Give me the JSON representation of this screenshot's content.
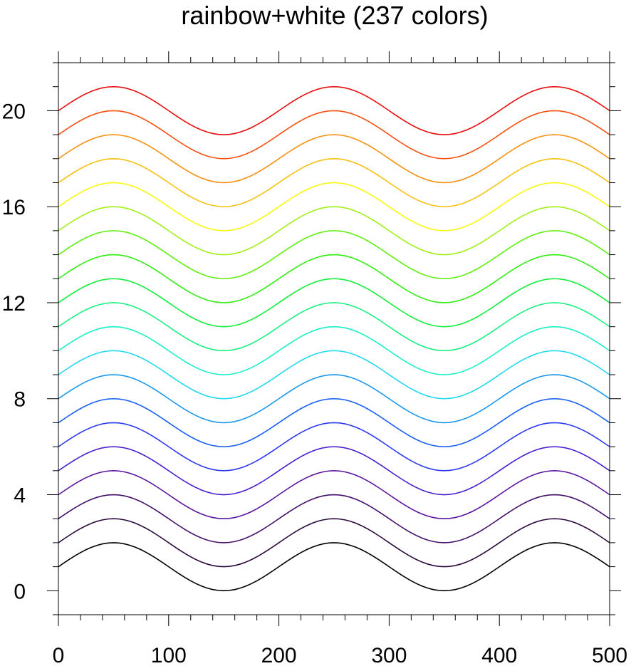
{
  "chart_data": {
    "type": "line",
    "title": "rainbow+white (237 colors)",
    "xlabel": "",
    "ylabel": "",
    "xlim": [
      0,
      500
    ],
    "ylim": [
      -1,
      22
    ],
    "x_ticks": [
      0,
      100,
      200,
      300,
      400,
      500
    ],
    "y_ticks": [
      0,
      4,
      8,
      12,
      16,
      20
    ],
    "x_minor_step": 20,
    "y_minor_step": 1,
    "grid": false,
    "legend": "none",
    "curve": {
      "function": "sine",
      "amplitude": 1,
      "period": 200,
      "peak_x": 50,
      "x_start": 0,
      "x_end": 500,
      "x_step": 5
    },
    "series": [
      {
        "offset": 1,
        "color": "#000000"
      },
      {
        "offset": 2,
        "color": "#2a0a3c"
      },
      {
        "offset": 3,
        "color": "#44126a"
      },
      {
        "offset": 4,
        "color": "#5a14a0"
      },
      {
        "offset": 5,
        "color": "#4a1ed0"
      },
      {
        "offset": 6,
        "color": "#2a38f0"
      },
      {
        "offset": 7,
        "color": "#1a60f4"
      },
      {
        "offset": 8,
        "color": "#1a98f0"
      },
      {
        "offset": 9,
        "color": "#20d8f0"
      },
      {
        "offset": 10,
        "color": "#1cf0c8"
      },
      {
        "offset": 11,
        "color": "#18f080"
      },
      {
        "offset": 12,
        "color": "#10ee3c"
      },
      {
        "offset": 13,
        "color": "#30ee10"
      },
      {
        "offset": 14,
        "color": "#60f010"
      },
      {
        "offset": 15,
        "color": "#a0f018"
      },
      {
        "offset": 16,
        "color": "#f8f810"
      },
      {
        "offset": 17,
        "color": "#f8c010"
      },
      {
        "offset": 18,
        "color": "#f89010"
      },
      {
        "offset": 19,
        "color": "#f85010"
      },
      {
        "offset": 20,
        "color": "#e80c0c"
      }
    ]
  }
}
